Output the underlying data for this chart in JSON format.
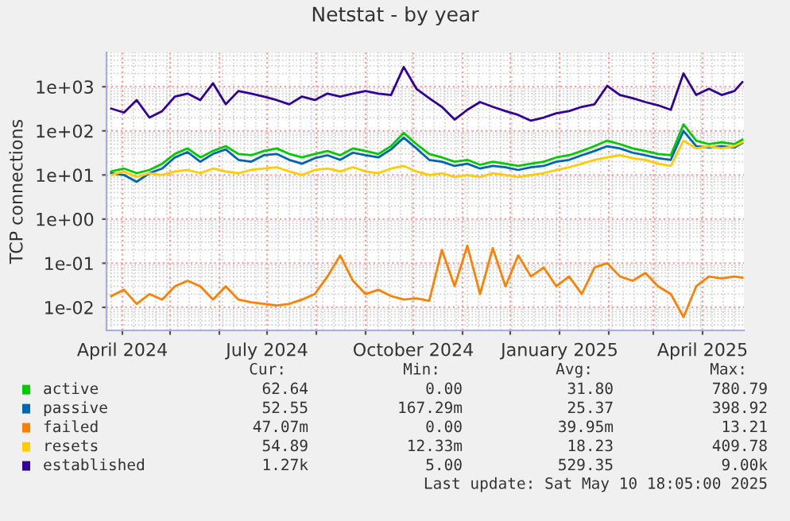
{
  "chart_data": {
    "type": "line",
    "title": "Netstat - by year",
    "ylabel": "TCP connections",
    "log": "y",
    "grid": true,
    "legend": "bottom",
    "xlim": [
      "2024-03-22",
      "2025-04-27"
    ],
    "xticks": [
      {
        "value": "2024-04-01",
        "label": "April 2024"
      },
      {
        "value": "2024-05-01",
        "label": null
      },
      {
        "value": "2024-06-01",
        "label": null
      },
      {
        "value": "2024-07-01",
        "label": "July 2024"
      },
      {
        "value": "2024-08-01",
        "label": null
      },
      {
        "value": "2024-09-01",
        "label": null
      },
      {
        "value": "2024-10-01",
        "label": "October 2024"
      },
      {
        "value": "2024-11-01",
        "label": null
      },
      {
        "value": "2024-12-01",
        "label": null
      },
      {
        "value": "2025-01-01",
        "label": "January 2025"
      },
      {
        "value": "2025-02-01",
        "label": null
      },
      {
        "value": "2025-03-01",
        "label": null
      },
      {
        "value": "2025-04-01",
        "label": "April 2025"
      }
    ],
    "ylim": [
      0.003,
      6000
    ],
    "yticks": [
      {
        "value": 0.01,
        "label": "1e-02"
      },
      {
        "value": 0.1,
        "label": "1e-01"
      },
      {
        "value": 1,
        "label": "1e+00"
      },
      {
        "value": 10,
        "label": "1e+01"
      },
      {
        "value": 100,
        "label": "1e+02"
      },
      {
        "value": 1000,
        "label": "1e+03"
      }
    ],
    "x": [
      "2024-03-25",
      "2024-04-02",
      "2024-04-10",
      "2024-04-18",
      "2024-04-26",
      "2024-05-04",
      "2024-05-12",
      "2024-05-20",
      "2024-05-28",
      "2024-06-05",
      "2024-06-13",
      "2024-06-21",
      "2024-06-29",
      "2024-07-07",
      "2024-07-15",
      "2024-07-23",
      "2024-07-31",
      "2024-08-08",
      "2024-08-16",
      "2024-08-24",
      "2024-09-01",
      "2024-09-09",
      "2024-09-17",
      "2024-09-25",
      "2024-10-03",
      "2024-10-11",
      "2024-10-19",
      "2024-10-27",
      "2024-11-04",
      "2024-11-12",
      "2024-11-20",
      "2024-11-28",
      "2024-12-06",
      "2024-12-14",
      "2024-12-22",
      "2024-12-30",
      "2025-01-07",
      "2025-01-15",
      "2025-01-23",
      "2025-01-31",
      "2025-02-08",
      "2025-02-16",
      "2025-02-24",
      "2025-03-04",
      "2025-03-12",
      "2025-03-20",
      "2025-03-28",
      "2025-04-05",
      "2025-04-13",
      "2025-04-21",
      "2025-04-26"
    ],
    "series": [
      {
        "name": "active",
        "color": "#00cc00",
        "values": [
          12,
          14,
          11,
          13,
          18,
          30,
          40,
          25,
          35,
          45,
          30,
          28,
          35,
          40,
          30,
          25,
          30,
          35,
          28,
          40,
          35,
          30,
          45,
          90,
          50,
          30,
          25,
          20,
          22,
          17,
          20,
          18,
          16,
          18,
          20,
          25,
          28,
          35,
          45,
          60,
          50,
          40,
          35,
          30,
          28,
          140,
          60,
          50,
          55,
          50,
          63
        ]
      },
      {
        "name": "passive",
        "color": "#0066b3",
        "values": [
          11,
          10,
          7,
          11,
          14,
          25,
          33,
          20,
          30,
          38,
          22,
          20,
          28,
          30,
          22,
          18,
          24,
          28,
          22,
          32,
          28,
          25,
          38,
          70,
          40,
          22,
          20,
          16,
          18,
          14,
          16,
          15,
          13,
          15,
          16,
          20,
          22,
          28,
          35,
          45,
          40,
          32,
          28,
          24,
          22,
          100,
          45,
          42,
          45,
          42,
          53
        ]
      },
      {
        "name": "failed",
        "color": "#ff8000",
        "values": [
          0.018,
          0.025,
          0.012,
          0.02,
          0.015,
          0.03,
          0.04,
          0.03,
          0.015,
          0.03,
          0.015,
          0.013,
          0.012,
          0.011,
          0.012,
          0.015,
          0.02,
          0.05,
          0.15,
          0.04,
          0.02,
          0.025,
          0.018,
          0.015,
          0.016,
          0.014,
          0.2,
          0.03,
          0.25,
          0.02,
          0.22,
          0.03,
          0.15,
          0.05,
          0.08,
          0.03,
          0.05,
          0.02,
          0.08,
          0.1,
          0.05,
          0.04,
          0.06,
          0.03,
          0.02,
          0.006,
          0.03,
          0.05,
          0.045,
          0.05,
          0.047
        ]
      },
      {
        "name": "resets",
        "color": "#ffcc00",
        "values": [
          10,
          12,
          9,
          11,
          10,
          12,
          13,
          11,
          14,
          12,
          11,
          13,
          14,
          15,
          12,
          10,
          13,
          14,
          12,
          15,
          12,
          11,
          14,
          16,
          12,
          10,
          11,
          9,
          10,
          9,
          11,
          10,
          9,
          10,
          11,
          13,
          15,
          18,
          22,
          25,
          28,
          24,
          22,
          18,
          16,
          60,
          40,
          45,
          40,
          45,
          55
        ]
      },
      {
        "name": "established",
        "color": "#330099",
        "values": [
          320,
          260,
          500,
          200,
          280,
          600,
          700,
          500,
          1200,
          400,
          800,
          700,
          600,
          500,
          400,
          600,
          500,
          700,
          600,
          700,
          800,
          700,
          650,
          2800,
          900,
          550,
          350,
          180,
          300,
          450,
          350,
          280,
          230,
          170,
          200,
          250,
          280,
          350,
          400,
          1050,
          650,
          550,
          450,
          380,
          300,
          2000,
          650,
          900,
          650,
          800,
          1270
        ]
      }
    ],
    "annotations": [
      "Cur:",
      "Min:",
      "Avg:",
      "Max:",
      "62.64",
      "0.00",
      "31.80",
      "780.79",
      "52.55",
      "167.29m",
      "25.37",
      "398.92",
      "47.07m",
      "0.00",
      "39.95m",
      "13.21",
      "54.89",
      "12.33m",
      "18.23",
      "409.78",
      "1.27k",
      "5.00",
      "529.35",
      "9.00k",
      "Last update: Sat May 10 18:05:00 2025"
    ]
  }
}
